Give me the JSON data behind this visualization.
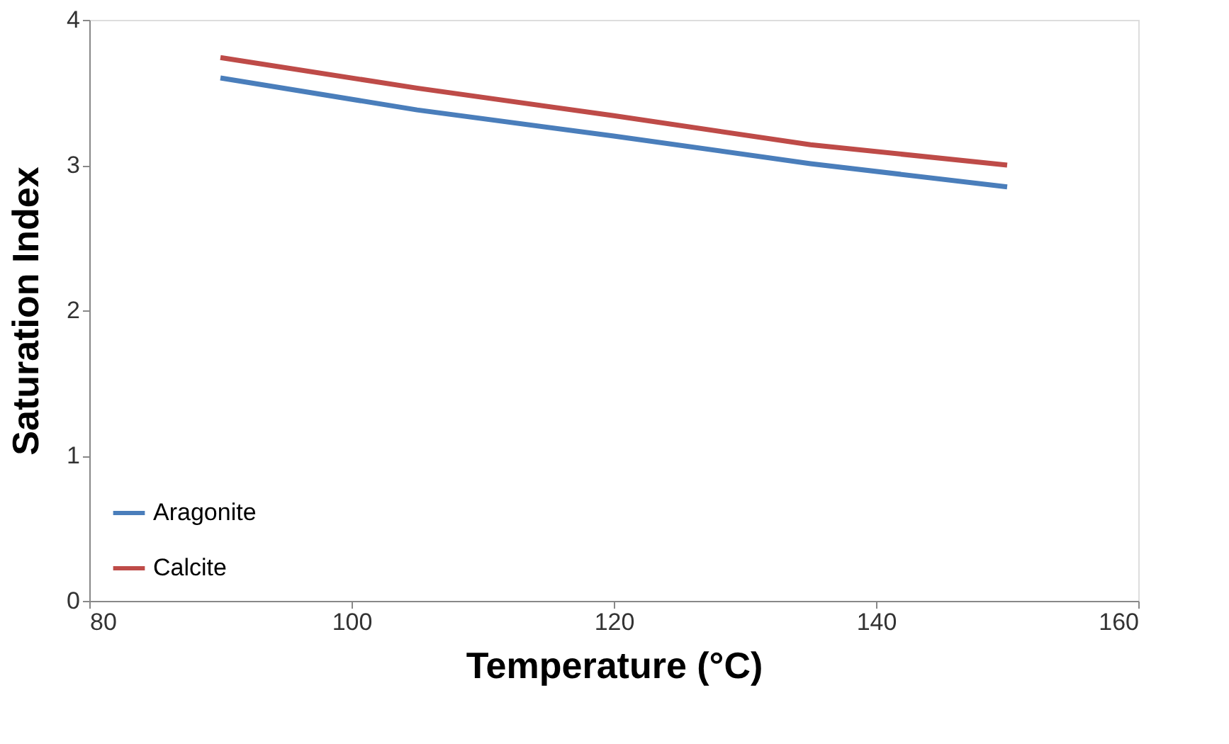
{
  "chart_data": {
    "type": "line",
    "xlabel": "Temperature (°C)",
    "ylabel": "Saturation Index",
    "x": [
      90,
      105,
      120,
      135,
      150
    ],
    "series": [
      {
        "name": "Aragonite",
        "color": "#4a7ebb",
        "values": [
          3.6,
          3.38,
          3.2,
          3.01,
          2.85
        ]
      },
      {
        "name": "Calcite",
        "color": "#be4b48",
        "values": [
          3.74,
          3.53,
          3.34,
          3.14,
          3.0
        ]
      }
    ],
    "xlim": [
      80,
      160
    ],
    "xticks": [
      80,
      100,
      120,
      140,
      160
    ],
    "ylim": [
      0,
      4
    ],
    "yticks": [
      0,
      1,
      2,
      3,
      4
    ],
    "grid": false,
    "legend": "bottom left",
    "marker": "none",
    "line_style": "solid"
  }
}
